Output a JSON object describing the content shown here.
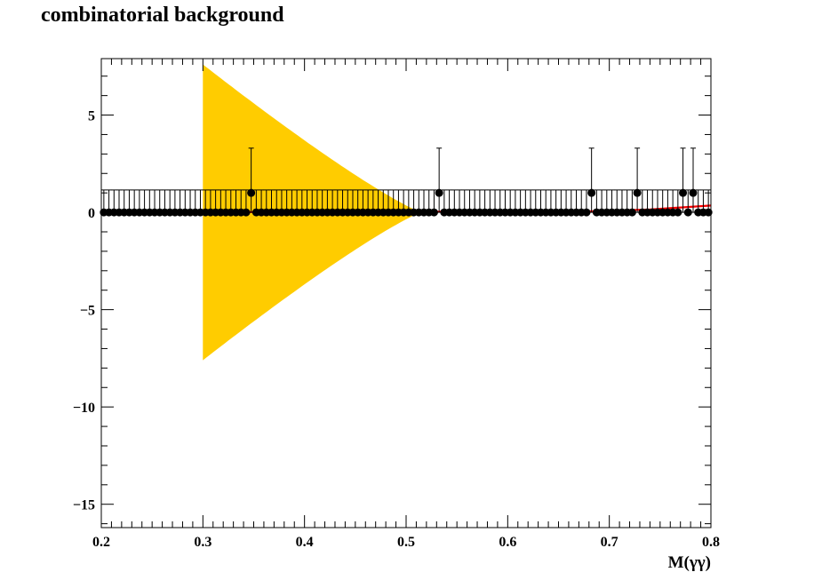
{
  "chart_data": {
    "type": "scatter",
    "title": "combinatorial background",
    "xlabel": "M(γγ)",
    "ylabel": "",
    "xlim": [
      0.2,
      0.8
    ],
    "ylim": [
      -16.2,
      7.9
    ],
    "grid": false,
    "x_ticks": [
      "0.2",
      "0.3",
      "0.4",
      "0.5",
      "0.6",
      "0.7",
      "0.8"
    ],
    "y_ticks": [
      "5",
      "0",
      "−5",
      "−10",
      "−15"
    ],
    "colors": {
      "band": "#ffcc00",
      "fit": "#ff0000",
      "points": "#000000",
      "frame": "#000000"
    },
    "series": [
      {
        "kind": "band",
        "x_start": 0.3,
        "x_end": 0.515,
        "upper_at_start": 7.6,
        "lower_at_start": -7.6,
        "value_at_end": 0
      },
      {
        "kind": "fit",
        "points": [
          [
            0.2,
            0.0
          ],
          [
            0.68,
            0.05
          ],
          [
            0.74,
            0.15
          ],
          [
            0.8,
            0.35
          ]
        ]
      },
      {
        "kind": "data",
        "bin_width": 0.005,
        "x_first": 0.2025,
        "x_last": 0.7975,
        "zero_err_up": 1.15,
        "one_err_up": 2.3,
        "one_err_down": 1.0,
        "ones": [
          0.3475,
          0.5325,
          0.6825,
          0.7275,
          0.7725,
          0.7825
        ]
      }
    ]
  }
}
